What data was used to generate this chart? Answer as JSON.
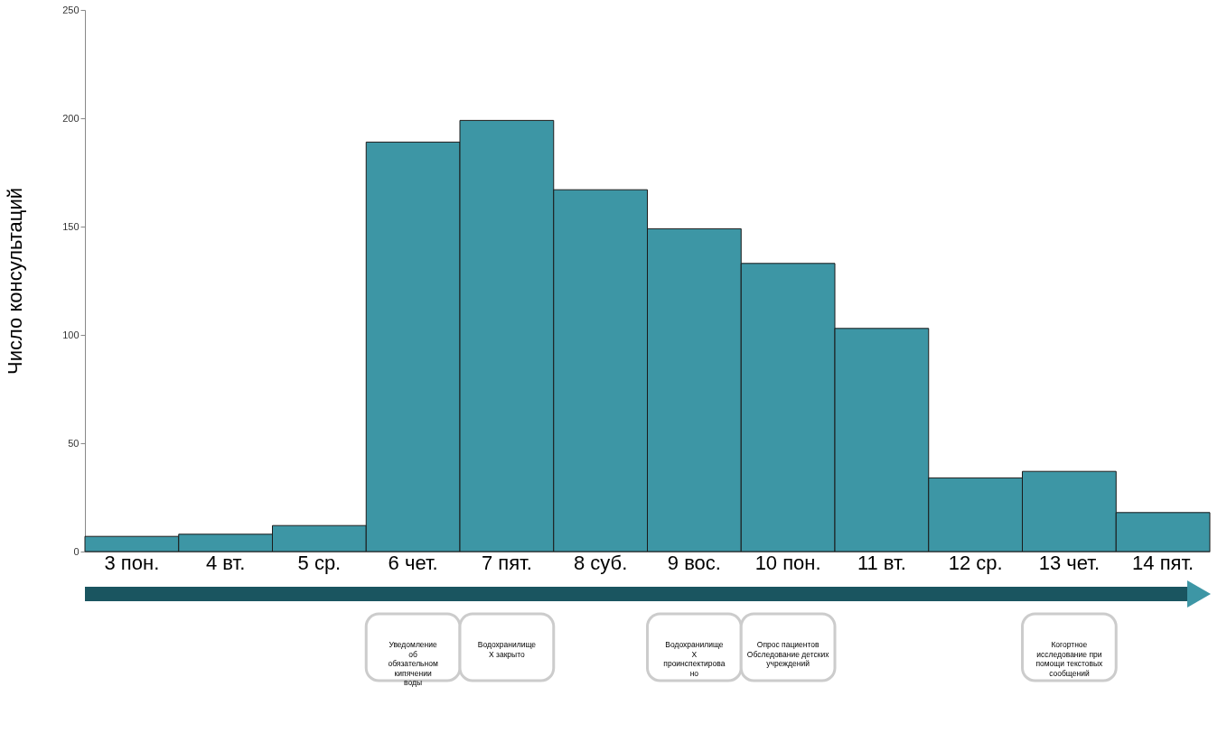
{
  "chart_data": {
    "type": "bar",
    "ylabel": "Число консультаций",
    "categories": [
      "3 пон.",
      "4 вт.",
      "5 ср.",
      "6 чет.",
      "7 пят.",
      "8 суб.",
      "9 вос.",
      "10 пон.",
      "11 вт.",
      "12 ср.",
      "13 чет.",
      "14 пят."
    ],
    "values": [
      7,
      8,
      12,
      189,
      199,
      167,
      149,
      133,
      103,
      34,
      37,
      18
    ],
    "color": "#3d96a5",
    "ylim": [
      0,
      250
    ],
    "yticks": [
      0,
      50,
      100,
      150,
      200,
      250
    ],
    "grid": false,
    "annotations": [
      "Уведомление\nоб\nобязательном\nкипячении\nводы",
      "Водохранилище\nX закрыто",
      "Водохранилище\nX\nпроинспектирова\nно",
      "Опрос пациентов\nОбследование детских\nучреждений",
      "Когортное\nисследование при\nпомощи текстовых\nсообщений"
    ]
  }
}
